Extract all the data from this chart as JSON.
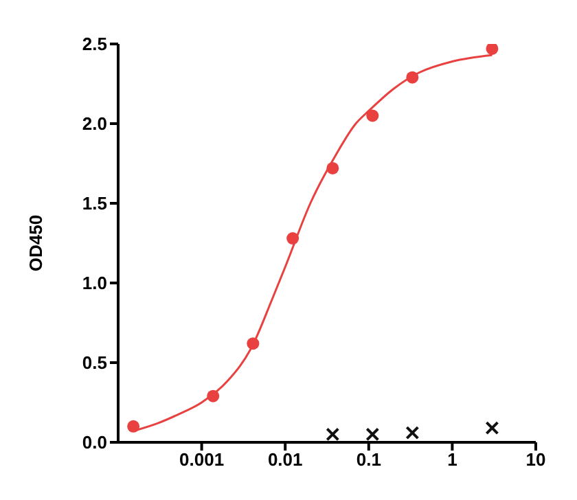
{
  "chart_data": {
    "type": "scatter",
    "ylabel": "OD450",
    "log": "x",
    "xlim": [
      0.0001,
      10
    ],
    "xticks": [
      0.001,
      0.01,
      0.1,
      1,
      10
    ],
    "ylim": [
      0,
      2.5
    ],
    "yticks": [
      {
        "value": 0,
        "label": "0.0"
      },
      {
        "value": 0.5,
        "label": "0.5"
      },
      {
        "value": 1,
        "label": "1.0"
      },
      {
        "value": 1.5,
        "label": "1.5"
      },
      {
        "value": 2,
        "label": "2.0"
      },
      {
        "value": 2.5,
        "label": "2.5"
      }
    ],
    "grid": false,
    "legend": false,
    "series": [
      {
        "marker": "circle",
        "color": "#e8413f",
        "x": [
          0.000152,
          0.00137,
          0.00412,
          0.0123,
          0.037,
          0.111,
          0.333,
          3
        ],
        "values": [
          0.1,
          0.29,
          0.62,
          1.28,
          1.72,
          2.05,
          2.29,
          2.47
        ]
      },
      {
        "type": "line",
        "marker": "none",
        "color": "#e8413f",
        "x": [
          0.00015,
          0.0003,
          0.0005,
          0.001,
          0.002,
          0.004,
          0.007,
          0.01,
          0.02,
          0.04,
          0.07,
          0.1,
          0.2,
          0.4,
          1,
          3
        ],
        "values": [
          0.07,
          0.12,
          0.17,
          0.25,
          0.38,
          0.6,
          0.9,
          1.1,
          1.5,
          1.8,
          2.0,
          2.08,
          2.22,
          2.32,
          2.39,
          2.43
        ]
      },
      {
        "marker": "cross",
        "color": "#111111",
        "x": [
          0.037,
          0.111,
          0.333,
          3
        ],
        "values": [
          0.05,
          0.05,
          0.06,
          0.09
        ]
      }
    ]
  }
}
